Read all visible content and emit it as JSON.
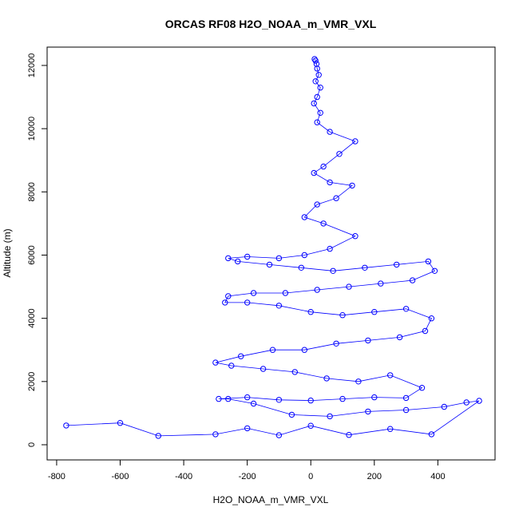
{
  "chart_data": {
    "type": "scatter",
    "title": "ORCAS RF08 H2O_NOAA_m_VMR_VXL",
    "xlabel": "H2O_NOAA_m_VMR_VXL",
    "ylabel": "Altitude (m)",
    "xlim": [
      -830,
      580
    ],
    "ylim": [
      -480,
      12580
    ],
    "xticks": [
      -800,
      -600,
      -400,
      -200,
      0,
      200,
      400
    ],
    "xtick_labels": [
      "-800",
      "-600",
      "-400",
      "-200",
      "0",
      "200",
      "400"
    ],
    "yticks": [
      0,
      2000,
      4000,
      6000,
      8000,
      10000,
      12000
    ],
    "ytick_labels": [
      "0",
      "2000",
      "4000",
      "6000",
      "8000",
      "10000",
      "12000"
    ],
    "marker": "open-circle",
    "connected_line": true,
    "color": "#0000ff",
    "grid": false,
    "legend": "none",
    "series": [
      {
        "x": [
          -770,
          -600,
          -480,
          -300,
          -200,
          -100,
          0,
          120,
          250,
          380,
          530,
          490,
          420,
          300,
          180,
          60,
          -60,
          -180,
          -260,
          -290,
          -200,
          -100,
          0,
          100,
          200,
          300,
          350,
          250,
          150,
          50,
          -50,
          -150,
          -250,
          -300,
          -220,
          -120,
          -20,
          80,
          180,
          280,
          360,
          380,
          300,
          200,
          100,
          0,
          -100,
          -200,
          -270,
          -260,
          -180,
          -80,
          20,
          120,
          220,
          320,
          390,
          370,
          270,
          170,
          70,
          -30,
          -130,
          -230,
          -260,
          -200,
          -100,
          -20,
          60,
          140,
          40,
          -20,
          20,
          80,
          130,
          60,
          10,
          40,
          90,
          140,
          60,
          20,
          30,
          10,
          20,
          30,
          15,
          25,
          20,
          18,
          15,
          12
        ],
        "y": [
          610,
          690,
          280,
          330,
          520,
          300,
          600,
          310,
          500,
          330,
          1390,
          1340,
          1200,
          1100,
          1050,
          900,
          950,
          1300,
          1450,
          1450,
          1500,
          1420,
          1400,
          1450,
          1500,
          1480,
          1800,
          2200,
          2000,
          2100,
          2300,
          2400,
          2500,
          2600,
          2800,
          3000,
          3000,
          3200,
          3300,
          3400,
          3600,
          4000,
          4300,
          4200,
          4100,
          4200,
          4400,
          4500,
          4500,
          4700,
          4800,
          4800,
          4900,
          5000,
          5100,
          5200,
          5500,
          5800,
          5700,
          5600,
          5500,
          5600,
          5700,
          5800,
          5900,
          5950,
          5900,
          6000,
          6200,
          6600,
          7000,
          7200,
          7600,
          7800,
          8200,
          8300,
          8600,
          8800,
          9200,
          9600,
          9900,
          10200,
          10500,
          10800,
          11000,
          11300,
          11500,
          11700,
          11900,
          12050,
          12150,
          12200
        ]
      }
    ]
  }
}
